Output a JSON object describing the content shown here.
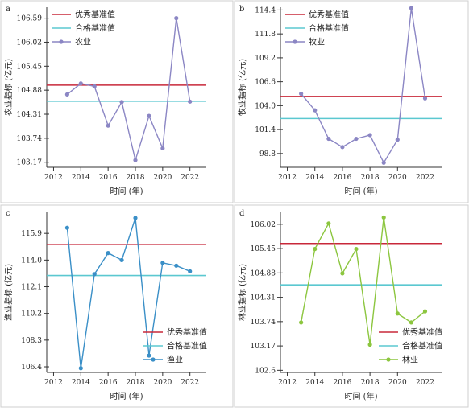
{
  "chart_data": [
    {
      "type": "line",
      "panel_label": "a",
      "xlabel": "时间 (年)",
      "ylabel": "农业指标 (亿元)",
      "x_ticks": [
        2012,
        2014,
        2016,
        2018,
        2020,
        2022
      ],
      "y_ticks": [
        103.17,
        103.74,
        104.31,
        104.88,
        105.45,
        106.02,
        106.59
      ],
      "xlim": [
        2011.5,
        2023.2
      ],
      "ylim": [
        103.05,
        106.85
      ],
      "legend_position": "top-left",
      "reference_lines": [
        {
          "name": "优秀基准值",
          "value": 105.0,
          "color": "#c8283a"
        },
        {
          "name": "合格基准值",
          "value": 104.62,
          "color": "#5bc8d0"
        }
      ],
      "series": [
        {
          "name": "农业",
          "color": "#8b86c4",
          "x": [
            2013,
            2014,
            2015,
            2016,
            2017,
            2018,
            2019,
            2020,
            2021,
            2022
          ],
          "values": [
            104.78,
            105.04,
            104.97,
            104.04,
            104.6,
            103.22,
            104.27,
            103.5,
            106.59,
            104.61
          ]
        }
      ]
    },
    {
      "type": "line",
      "panel_label": "b",
      "xlabel": "时间 (年)",
      "ylabel": "牧业指标 (亿元)",
      "x_ticks": [
        2012,
        2014,
        2016,
        2018,
        2020,
        2022
      ],
      "y_ticks": [
        98.8,
        101.4,
        104.0,
        106.6,
        109.2,
        111.8,
        114.4
      ],
      "xlim": [
        2011.5,
        2023.2
      ],
      "ylim": [
        97.3,
        114.7
      ],
      "legend_position": "top-left",
      "reference_lines": [
        {
          "name": "优秀基准值",
          "value": 105.0,
          "color": "#c8283a"
        },
        {
          "name": "合格基准值",
          "value": 102.6,
          "color": "#5bc8d0"
        }
      ],
      "series": [
        {
          "name": "牧业",
          "color": "#8b86c4",
          "x": [
            2013,
            2014,
            2015,
            2016,
            2017,
            2018,
            2019,
            2020,
            2021,
            2022
          ],
          "values": [
            105.3,
            103.5,
            100.4,
            99.5,
            100.4,
            100.8,
            97.8,
            100.3,
            114.6,
            104.8
          ]
        }
      ]
    },
    {
      "type": "line",
      "panel_label": "c",
      "xlabel": "时间 (年)",
      "ylabel": "渔业指标 (亿元)",
      "x_ticks": [
        2012,
        2014,
        2016,
        2018,
        2020,
        2022
      ],
      "y_ticks": [
        106.4,
        108.3,
        110.2,
        112.1,
        114.0,
        115.9
      ],
      "xlim": [
        2011.5,
        2023.2
      ],
      "ylim": [
        106.0,
        117.4
      ],
      "legend_position": "bottom-right",
      "reference_lines": [
        {
          "name": "优秀基准值",
          "value": 115.1,
          "color": "#c8283a"
        },
        {
          "name": "合格基准值",
          "value": 112.9,
          "color": "#5bc8d0"
        }
      ],
      "series": [
        {
          "name": "渔业",
          "color": "#3a8fc7",
          "x": [
            2013,
            2014,
            2015,
            2016,
            2017,
            2018,
            2019,
            2020,
            2021,
            2022
          ],
          "values": [
            116.3,
            106.3,
            113.0,
            114.5,
            114.0,
            117.0,
            107.2,
            113.8,
            113.6,
            113.2
          ]
        }
      ]
    },
    {
      "type": "line",
      "panel_label": "d",
      "xlabel": "时间 (年)",
      "ylabel": "林业指标 (亿元)",
      "x_ticks": [
        2012,
        2014,
        2016,
        2018,
        2020,
        2022
      ],
      "y_ticks": [
        102.6,
        103.17,
        103.74,
        104.31,
        104.88,
        105.45,
        106.02
      ],
      "xlim": [
        2011.5,
        2023.2
      ],
      "ylim": [
        102.55,
        106.3
      ],
      "legend_position": "bottom-right",
      "reference_lines": [
        {
          "name": "优秀基准值",
          "value": 105.57,
          "color": "#c8283a"
        },
        {
          "name": "合格基准值",
          "value": 104.6,
          "color": "#5bc8d0"
        }
      ],
      "series": [
        {
          "name": "林业",
          "color": "#8cc63f",
          "x": [
            2013,
            2014,
            2015,
            2016,
            2017,
            2018,
            2019,
            2020,
            2021,
            2022
          ],
          "values": [
            103.72,
            105.44,
            106.04,
            104.87,
            105.44,
            103.2,
            106.18,
            103.93,
            103.72,
            103.98
          ]
        }
      ]
    }
  ]
}
